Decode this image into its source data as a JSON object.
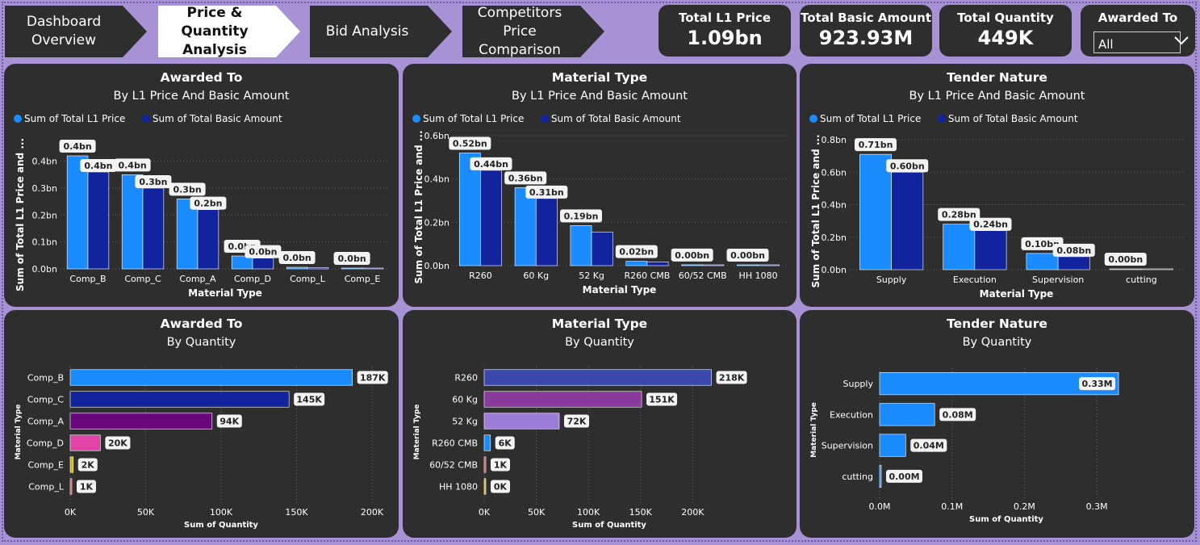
{
  "nav": {
    "tabs": [
      {
        "label_line1": "Dashboard",
        "label_line2": "Overview",
        "active": false
      },
      {
        "label_line1": "Price & Quantity",
        "label_line2": "Analysis",
        "active": true
      },
      {
        "label_line1": "Bid Analysis",
        "label_line2": "",
        "active": false
      },
      {
        "label_line1": "Competitors Price",
        "label_line2": "Comparison",
        "active": false
      }
    ]
  },
  "kpis": [
    {
      "title": "Total L1 Price",
      "value": "1.09bn"
    },
    {
      "title": "Total Basic Amount",
      "value": "923.93M"
    },
    {
      "title": "Total Quantity",
      "value": "449K"
    }
  ],
  "slicer": {
    "title": "Awarded To",
    "value": "All"
  },
  "colors": {
    "background": "#a792d6",
    "panel": "#2e2e2e",
    "series1": "#1a8cff",
    "series2": "#12239e",
    "label_bg": "#f3f3f3"
  },
  "chart_data": [
    {
      "type": "bar",
      "title": "Awarded To",
      "subtitle": "By L1 Price And Basic Amount",
      "xlabel": "Material Type",
      "ylabel": "Sum of Total L1 Price and ...",
      "legend": [
        "Sum of Total L1 Price",
        "Sum of Total Basic Amount"
      ],
      "categories": [
        "Comp_B",
        "Comp_C",
        "Comp_A",
        "Comp_D",
        "Comp_L",
        "Comp_E"
      ],
      "series": [
        {
          "name": "Sum of Total L1 Price",
          "values": [
            0.42,
            0.35,
            0.26,
            0.048,
            0.006,
            0.003
          ],
          "labels": [
            "0.4bn",
            "0.4bn",
            "0.3bn",
            "0.0bn",
            "0.0bn",
            "0.0bn"
          ]
        },
        {
          "name": "Sum of Total Basic Amount",
          "values": [
            0.36,
            0.3,
            0.22,
            0.04,
            0.005,
            0.002
          ],
          "labels": [
            "0.4bn",
            "0.3bn",
            "0.2bn",
            "0.0bn",
            "",
            ""
          ]
        }
      ],
      "yticks": [
        "0.0bn",
        "0.1bn",
        "0.2bn",
        "0.3bn",
        "0.4bn"
      ],
      "ylim": [
        0,
        0.45
      ]
    },
    {
      "type": "bar",
      "title": "Material Type",
      "subtitle": "By L1 Price And Basic Amount",
      "xlabel": "Material Type",
      "ylabel": "Sum of Total L1 Price and ...",
      "legend": [
        "Sum of Total L1 Price",
        "Sum of Total Basic Amount"
      ],
      "categories": [
        "R260",
        "60 Kg",
        "52 Kg",
        "R260 CMB",
        "60/52 CMB",
        "HH 1080"
      ],
      "series": [
        {
          "name": "Sum of Total L1 Price",
          "values": [
            0.52,
            0.36,
            0.185,
            0.02,
            0.004,
            0.002
          ],
          "labels": [
            "0.52bn",
            "0.36bn",
            "0.19bn",
            "0.02bn",
            "0.00bn",
            "0.00bn"
          ]
        },
        {
          "name": "Sum of Total Basic Amount",
          "values": [
            0.44,
            0.31,
            0.155,
            0.017,
            0.003,
            0.002
          ],
          "labels": [
            "0.44bn",
            "0.31bn",
            "",
            "",
            "",
            ""
          ]
        }
      ],
      "yticks": [
        "0.0bn",
        "0.2bn",
        "0.4bn",
        "0.6bn"
      ],
      "ylim": [
        0,
        0.6
      ]
    },
    {
      "type": "bar",
      "title": "Tender Nature",
      "subtitle": "By L1 Price And Basic Amount",
      "xlabel": "Material Type",
      "ylabel": "Sum of Total L1 Price and ...",
      "legend": [
        "Sum of Total L1 Price",
        "Sum of Total Basic Amount"
      ],
      "categories": [
        "Supply",
        "Execution",
        "Supervision",
        "cutting"
      ],
      "series": [
        {
          "name": "Sum of Total L1 Price",
          "values": [
            0.71,
            0.28,
            0.1,
            0.004
          ],
          "labels": [
            "0.71bn",
            "0.28bn",
            "0.10bn",
            "0.00bn"
          ]
        },
        {
          "name": "Sum of Total Basic Amount",
          "values": [
            0.6,
            0.24,
            0.08,
            0.003
          ],
          "labels": [
            "0.60bn",
            "0.24bn",
            "0.08bn",
            ""
          ]
        }
      ],
      "yticks": [
        "0.0bn",
        "0.2bn",
        "0.4bn",
        "0.6bn",
        "0.8bn"
      ],
      "ylim": [
        0,
        0.8
      ]
    },
    {
      "type": "hbar",
      "title": "Awarded To",
      "subtitle": "By Quantity",
      "xlabel": "Sum of Quantity",
      "ylabel": "Material Type",
      "categories": [
        "Comp_B",
        "Comp_C",
        "Comp_A",
        "Comp_D",
        "Comp_E",
        "Comp_L"
      ],
      "values": [
        187000,
        145000,
        94000,
        20000,
        2000,
        1000
      ],
      "labels": [
        "187K",
        "145K",
        "94K",
        "20K",
        "2K",
        "1K"
      ],
      "bar_colors": [
        "#1a8cff",
        "#12239e",
        "#6a077a",
        "#e044a7",
        "#d9b300",
        "#d64550"
      ],
      "xticks": [
        "0K",
        "50K",
        "100K",
        "150K",
        "200K"
      ],
      "xlim": [
        0,
        200000
      ]
    },
    {
      "type": "hbar",
      "title": "Material Type",
      "subtitle": "By Quantity",
      "xlabel": "Sum of Quantity",
      "ylabel": "Material Type",
      "categories": [
        "R260",
        "60 Kg",
        "52 Kg",
        "R260 CMB",
        "60/52 CMB",
        "HH 1080"
      ],
      "values": [
        218000,
        151000,
        72000,
        6000,
        1000,
        300
      ],
      "labels": [
        "218K",
        "151K",
        "72K",
        "6K",
        "1K",
        "0K"
      ],
      "bar_colors": [
        "#3b49ad",
        "#8a3a9c",
        "#9c7dd6",
        "#1a8cff",
        "#d64550",
        "#d9b300"
      ],
      "xticks": [
        "0K",
        "50K",
        "100K",
        "150K",
        "200K"
      ],
      "xlim": [
        0,
        240000
      ]
    },
    {
      "type": "hbar",
      "title": "Tender Nature",
      "subtitle": "By Quantity",
      "xlabel": "Sum of Quantity",
      "ylabel": "Material Type",
      "categories": [
        "Supply",
        "Execution",
        "Supervision",
        "cutting"
      ],
      "values": [
        0.33,
        0.076,
        0.036,
        0.001
      ],
      "labels": [
        "0.33M",
        "0.08M",
        "0.04M",
        "0.00M"
      ],
      "bar_colors": [
        "#1a8cff",
        "#1a8cff",
        "#1a8cff",
        "#1a8cff"
      ],
      "xticks": [
        "0.0M",
        "0.1M",
        "0.2M",
        "0.3M"
      ],
      "xlim": [
        0,
        0.35
      ]
    }
  ]
}
